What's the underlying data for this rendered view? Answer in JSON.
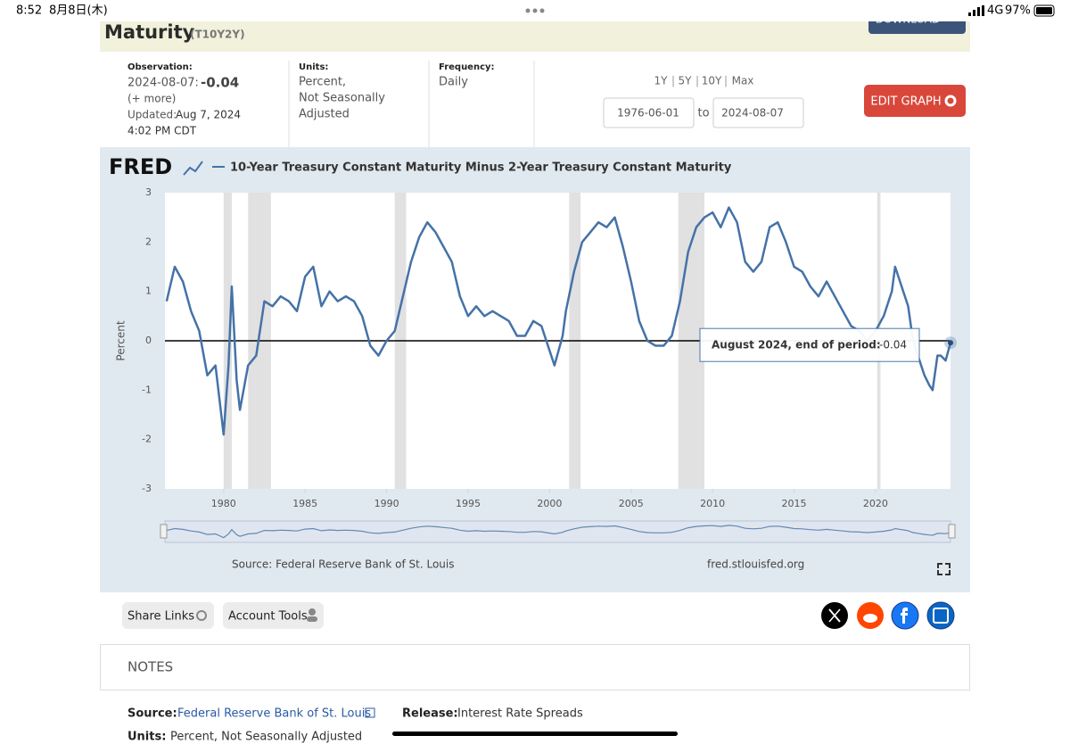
{
  "status_bar": {
    "time": "8:52",
    "date": "8月8日(木)",
    "network": "4G",
    "battery": "97%"
  },
  "header": {
    "title": "Maturity",
    "series_id": "(T10Y2Y)",
    "download": "DOWNLOAD"
  },
  "info": {
    "observation_label": "Observation:",
    "observation_date": "2024-08-07:",
    "observation_value": "-0.04",
    "more": "(+ more)",
    "updated_label": "Updated:",
    "updated_date": "Aug 7, 2024",
    "updated_time": "4:02 PM CDT",
    "units_label": "Units:",
    "units_lines": [
      "Percent,",
      "Not Seasonally",
      "Adjusted"
    ],
    "frequency_label": "Frequency:",
    "frequency": "Daily"
  },
  "controls": {
    "ranges": [
      "1Y",
      "5Y",
      "10Y",
      "Max"
    ],
    "start_date": "1976-06-01",
    "to": "to",
    "end_date": "2024-08-07",
    "edit_graph": "EDIT GRAPH"
  },
  "chart_data": {
    "type": "line",
    "title": "10-Year Treasury Constant Maturity Minus 2-Year Treasury Constant Maturity",
    "y_label": "Percent",
    "xlim": [
      1976.4,
      2024.6
    ],
    "ylim": [
      -3,
      3
    ],
    "xticks": [
      1980,
      1985,
      1990,
      1995,
      2000,
      2005,
      2010,
      2015,
      2020
    ],
    "yticks": [
      -3,
      -2,
      -1,
      0,
      1,
      2,
      3
    ],
    "grid": false,
    "recessions": [
      [
        1980.0,
        1980.5
      ],
      [
        1981.5,
        1982.9
      ],
      [
        1990.5,
        1991.2
      ],
      [
        2001.2,
        2001.9
      ],
      [
        2007.9,
        2009.5
      ],
      [
        2020.1,
        2020.3
      ]
    ],
    "tooltip": "August 2024, end of period:",
    "series": [
      {
        "name": "10-Year Treasury Constant Maturity Minus 2-Year Treasury Constant Maturity",
        "color": "#4572a7",
        "x": [
          1976.5,
          1977,
          1977.5,
          1978,
          1978.5,
          1979,
          1979.5,
          1980,
          1980.3,
          1980.5,
          1980.8,
          1981,
          1981.5,
          1982,
          1982.5,
          1983,
          1983.5,
          1984,
          1984.5,
          1985,
          1985.5,
          1986,
          1986.5,
          1987,
          1987.5,
          1988,
          1988.5,
          1989,
          1989.5,
          1990,
          1990.5,
          1991,
          1991.5,
          1992,
          1992.5,
          1993,
          1993.5,
          1994,
          1994.5,
          1995,
          1995.5,
          1996,
          1996.5,
          1997,
          1997.5,
          1998,
          1998.5,
          1999,
          1999.5,
          2000,
          2000.3,
          2000.8,
          2001,
          2001.5,
          2002,
          2002.5,
          2003,
          2003.5,
          2004,
          2004.5,
          2005,
          2005.5,
          2006,
          2006.5,
          2007,
          2007.5,
          2008,
          2008.5,
          2009,
          2009.5,
          2010,
          2010.5,
          2011,
          2011.5,
          2012,
          2012.5,
          2013,
          2013.5,
          2014,
          2014.5,
          2015,
          2015.5,
          2016,
          2016.5,
          2017,
          2017.5,
          2018,
          2018.5,
          2019,
          2019.5,
          2020,
          2020.5,
          2021,
          2021.2,
          2021.6,
          2022,
          2022.3,
          2022.7,
          2023,
          2023.3,
          2023.5,
          2023.8,
          2024,
          2024.3,
          2024.6
        ],
        "values": [
          0.8,
          1.5,
          1.2,
          0.6,
          0.2,
          -0.7,
          -0.5,
          -1.9,
          -0.5,
          1.1,
          -0.8,
          -1.4,
          -0.5,
          -0.3,
          0.8,
          0.7,
          0.9,
          0.8,
          0.6,
          1.3,
          1.5,
          0.7,
          1.0,
          0.8,
          0.9,
          0.8,
          0.5,
          -0.1,
          -0.3,
          0.0,
          0.2,
          0.9,
          1.6,
          2.1,
          2.4,
          2.2,
          1.9,
          1.6,
          0.9,
          0.5,
          0.7,
          0.5,
          0.6,
          0.5,
          0.4,
          0.1,
          0.1,
          0.4,
          0.3,
          -0.2,
          -0.5,
          0.1,
          0.6,
          1.4,
          2.0,
          2.2,
          2.4,
          2.3,
          2.5,
          1.9,
          1.2,
          0.4,
          0.0,
          -0.1,
          -0.1,
          0.1,
          0.8,
          1.8,
          2.3,
          2.5,
          2.6,
          2.3,
          2.7,
          2.4,
          1.6,
          1.4,
          1.6,
          2.3,
          2.4,
          2.0,
          1.5,
          1.4,
          1.1,
          0.9,
          1.2,
          0.9,
          0.6,
          0.3,
          0.2,
          0.0,
          0.2,
          0.5,
          1.0,
          1.5,
          1.1,
          0.7,
          0.0,
          -0.4,
          -0.7,
          -0.9,
          -1.0,
          -0.3,
          -0.3,
          -0.4,
          -0.04
        ]
      }
    ],
    "source": "Source: Federal Reserve Bank of St. Louis",
    "site": "fred.stlouisfed.org"
  },
  "actions": {
    "share": "Share Links",
    "account": "Account Tools"
  },
  "notes": {
    "heading": "NOTES",
    "source_label": "Source:",
    "source": "Federal Reserve Bank of St. Louis",
    "release_label": "Release:",
    "release": "Interest Rate Spreads",
    "units_label": "Units:",
    "units": "Percent, Not Seasonally Adjusted"
  }
}
